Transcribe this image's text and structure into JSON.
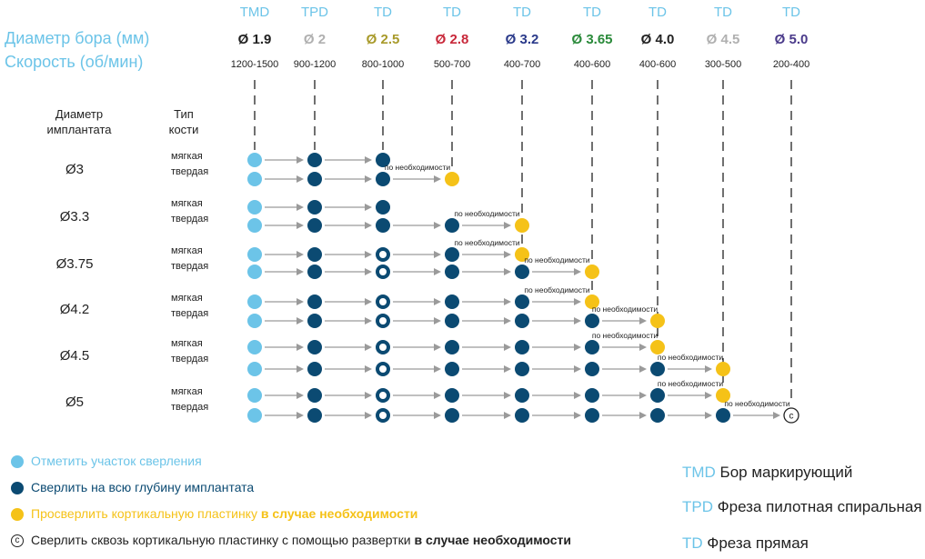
{
  "header": {
    "bore_label": "Диаметр бора (мм)",
    "speed_label": "Скорость (об/мин)"
  },
  "columns": [
    {
      "tool": "TMD",
      "diameter": "Ø 1.9",
      "speed": "1200-1500",
      "color": "#222222"
    },
    {
      "tool": "TPD",
      "diameter": "Ø 2",
      "speed": "900-1200",
      "color": "#b0b0b0"
    },
    {
      "tool": "TD",
      "diameter": "Ø 2.5",
      "speed": "800-1000",
      "color": "#a89a2a"
    },
    {
      "tool": "TD",
      "diameter": "Ø 2.8",
      "speed": "500-700",
      "color": "#c8283a"
    },
    {
      "tool": "TD",
      "diameter": "Ø 3.2",
      "speed": "400-700",
      "color": "#2a3a8a"
    },
    {
      "tool": "TD",
      "diameter": "Ø 3.65",
      "speed": "400-600",
      "color": "#2a8a3a"
    },
    {
      "tool": "TD",
      "diameter": "Ø 4.0",
      "speed": "400-600",
      "color": "#222222"
    },
    {
      "tool": "TD",
      "diameter": "Ø 4.5",
      "speed": "300-500",
      "color": "#b0b0b0"
    },
    {
      "tool": "TD",
      "diameter": "Ø 5.0",
      "speed": "200-400",
      "color": "#4a3a8a"
    }
  ],
  "table_headers": {
    "implant_line1": "Диаметр",
    "implant_line2": "имплантата",
    "bone_line1": "Тип",
    "bone_line2": "кости"
  },
  "bone_types": {
    "soft": "мягкая",
    "hard": "твердая"
  },
  "optional_label": "по необходимости",
  "colors": {
    "light": "#6cc4e8",
    "dark": "#0b4a72",
    "yellow": "#f5c218",
    "arrow": "#9a9a9a"
  },
  "rows": [
    {
      "implant": "Ø3",
      "soft": {
        "steps": [
          "L",
          "D",
          "D"
        ],
        "optional": null
      },
      "hard": {
        "steps": [
          "L",
          "D",
          "D"
        ],
        "optional": 3
      }
    },
    {
      "implant": "Ø3.3",
      "soft": {
        "steps": [
          "L",
          "D",
          "D"
        ],
        "optional": null
      },
      "hard": {
        "steps": [
          "L",
          "D",
          "D",
          "D"
        ],
        "optional": 4
      }
    },
    {
      "implant": "Ø3.75",
      "soft": {
        "steps": [
          "L",
          "D",
          "R",
          "D"
        ],
        "optional": 4
      },
      "hard": {
        "steps": [
          "L",
          "D",
          "R",
          "D",
          "D"
        ],
        "optional": 5
      }
    },
    {
      "implant": "Ø4.2",
      "soft": {
        "steps": [
          "L",
          "D",
          "R",
          "D",
          "D"
        ],
        "optional": 5
      },
      "hard": {
        "steps": [
          "L",
          "D",
          "R",
          "D",
          "D",
          "D"
        ],
        "optional": 6
      }
    },
    {
      "implant": "Ø4.5",
      "soft": {
        "steps": [
          "L",
          "D",
          "R",
          "D",
          "D",
          "D"
        ],
        "optional": 6
      },
      "hard": {
        "steps": [
          "L",
          "D",
          "R",
          "D",
          "D",
          "D",
          "D"
        ],
        "optional": 7
      }
    },
    {
      "implant": "Ø5",
      "soft": {
        "steps": [
          "L",
          "D",
          "R",
          "D",
          "D",
          "D",
          "D"
        ],
        "optional": 7
      },
      "hard": {
        "steps": [
          "L",
          "D",
          "R",
          "D",
          "D",
          "D",
          "D",
          "D"
        ],
        "optional_ring": 8
      }
    }
  ],
  "legend": [
    {
      "type": "light",
      "text": "Отметить участок сверления"
    },
    {
      "type": "dark",
      "text": "Сверлить на всю глубину имплантата"
    },
    {
      "type": "yellow",
      "text": "Просверлить кортикальную пластинку ",
      "bold": "в случае необходимости"
    },
    {
      "type": "ring",
      "ring_letter": "c",
      "text": "Сверлить сквозь кортикальную пластинку с помощью развертки ",
      "bold": "в случае необходимости"
    }
  ],
  "tool_legend": [
    {
      "code": "TMD",
      "text": " Бор маркирующий"
    },
    {
      "code": "TPD",
      "text": " Фреза пилотная спиральная"
    },
    {
      "code": "TD",
      "text": " Фреза прямая"
    }
  ]
}
